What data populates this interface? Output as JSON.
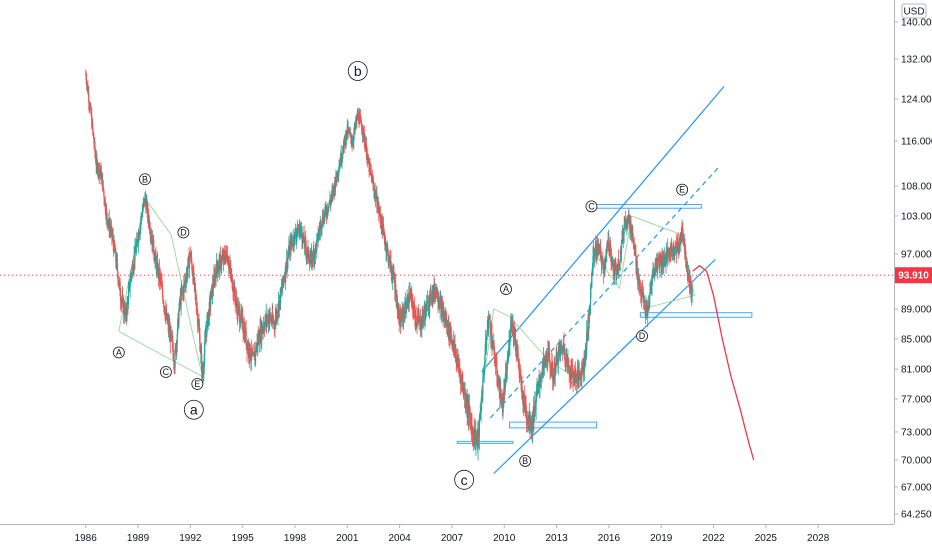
{
  "chart_data": {
    "type": "candlestick",
    "currency": "USD",
    "current_price": "93.910",
    "price_ticks": [
      "140.000",
      "132.000",
      "124.000",
      "116.000",
      "108.000",
      "103.000",
      "97.000",
      "89.000",
      "85.000",
      "81.000",
      "77.000",
      "73.000",
      "70.000",
      "67.000",
      "64.250"
    ],
    "year_ticks": [
      "1986",
      "1989",
      "1992",
      "1995",
      "1998",
      "2001",
      "2004",
      "2007",
      "2010",
      "2013",
      "2016",
      "2019",
      "2022",
      "2025",
      "2028"
    ],
    "wave_labels_small": [
      "A",
      "B",
      "C",
      "D",
      "E",
      "A",
      "B",
      "C",
      "D",
      "E"
    ],
    "wave_labels_large": [
      "a",
      "b",
      "c"
    ],
    "series_path": [
      [
        1986.0,
        129
      ],
      [
        1986.3,
        121
      ],
      [
        1986.6,
        112
      ],
      [
        1986.9,
        110
      ],
      [
        1987.2,
        103
      ],
      [
        1987.5,
        100
      ],
      [
        1987.8,
        95
      ],
      [
        1988.0,
        91
      ],
      [
        1988.3,
        88
      ],
      [
        1988.6,
        94
      ],
      [
        1988.9,
        98
      ],
      [
        1989.2,
        103
      ],
      [
        1989.4,
        106
      ],
      [
        1989.7,
        101
      ],
      [
        1990.0,
        96
      ],
      [
        1990.3,
        93
      ],
      [
        1990.6,
        88
      ],
      [
        1990.9,
        85
      ],
      [
        1991.1,
        82
      ],
      [
        1991.4,
        90
      ],
      [
        1991.7,
        93
      ],
      [
        1992.0,
        97
      ],
      [
        1992.2,
        93
      ],
      [
        1992.5,
        86
      ],
      [
        1992.7,
        80
      ],
      [
        1992.9,
        86
      ],
      [
        1993.2,
        91
      ],
      [
        1993.5,
        95
      ],
      [
        1993.8,
        96
      ],
      [
        1994.1,
        97
      ],
      [
        1994.4,
        93
      ],
      [
        1994.7,
        89
      ],
      [
        1995.0,
        87
      ],
      [
        1995.3,
        84
      ],
      [
        1995.6,
        82
      ],
      [
        1995.9,
        85
      ],
      [
        1996.2,
        87
      ],
      [
        1996.5,
        88
      ],
      [
        1996.8,
        87
      ],
      [
        1997.1,
        90
      ],
      [
        1997.4,
        94
      ],
      [
        1997.7,
        98
      ],
      [
        1998.0,
        100
      ],
      [
        1998.3,
        101
      ],
      [
        1998.6,
        98
      ],
      [
        1998.9,
        96
      ],
      [
        1999.2,
        98
      ],
      [
        1999.5,
        102
      ],
      [
        1999.8,
        104
      ],
      [
        2000.1,
        106
      ],
      [
        2000.4,
        110
      ],
      [
        2000.7,
        114
      ],
      [
        2001.0,
        118
      ],
      [
        2001.3,
        116
      ],
      [
        2001.6,
        121
      ],
      [
        2001.9,
        118
      ],
      [
        2002.2,
        112
      ],
      [
        2002.5,
        108
      ],
      [
        2002.8,
        104
      ],
      [
        2003.1,
        100
      ],
      [
        2003.4,
        96
      ],
      [
        2003.7,
        93
      ],
      [
        2004.0,
        87
      ],
      [
        2004.3,
        89
      ],
      [
        2004.6,
        91
      ],
      [
        2004.9,
        88
      ],
      [
        2005.2,
        87
      ],
      [
        2005.5,
        89
      ],
      [
        2005.8,
        91
      ],
      [
        2006.1,
        92
      ],
      [
        2006.4,
        89
      ],
      [
        2006.7,
        87
      ],
      [
        2007.0,
        85
      ],
      [
        2007.3,
        82
      ],
      [
        2007.6,
        79
      ],
      [
        2007.9,
        76
      ],
      [
        2008.2,
        73
      ],
      [
        2008.5,
        72
      ],
      [
        2008.7,
        77
      ],
      [
        2008.9,
        83
      ],
      [
        2009.1,
        88
      ],
      [
        2009.3,
        85
      ],
      [
        2009.6,
        80
      ],
      [
        2009.9,
        76
      ],
      [
        2010.2,
        82
      ],
      [
        2010.4,
        88
      ],
      [
        2010.7,
        84
      ],
      [
        2011.0,
        78
      ],
      [
        2011.3,
        75
      ],
      [
        2011.6,
        74
      ],
      [
        2011.9,
        78
      ],
      [
        2012.2,
        81
      ],
      [
        2012.5,
        83
      ],
      [
        2012.8,
        80
      ],
      [
        2013.1,
        83
      ],
      [
        2013.4,
        84
      ],
      [
        2013.7,
        81
      ],
      [
        2014.0,
        80
      ],
      [
        2014.3,
        80
      ],
      [
        2014.6,
        82
      ],
      [
        2014.9,
        89
      ],
      [
        2015.1,
        97
      ],
      [
        2015.4,
        98
      ],
      [
        2015.7,
        95
      ],
      [
        2016.0,
        99
      ],
      [
        2016.3,
        94
      ],
      [
        2016.6,
        96
      ],
      [
        2016.9,
        102
      ],
      [
        2017.1,
        103
      ],
      [
        2017.4,
        99
      ],
      [
        2017.7,
        93
      ],
      [
        2018.0,
        90
      ],
      [
        2018.2,
        88
      ],
      [
        2018.5,
        94
      ],
      [
        2018.8,
        96
      ],
      [
        2019.1,
        96
      ],
      [
        2019.4,
        97
      ],
      [
        2019.7,
        98
      ],
      [
        2020.0,
        98
      ],
      [
        2020.2,
        101
      ],
      [
        2020.4,
        97
      ],
      [
        2020.6,
        93
      ],
      [
        2020.8,
        91
      ]
    ],
    "projection_path": [
      [
        2020.8,
        94.5
      ],
      [
        2021.2,
        95.3
      ],
      [
        2021.6,
        94.5
      ],
      [
        2022.0,
        91
      ],
      [
        2022.5,
        85
      ],
      [
        2023.0,
        80
      ],
      [
        2023.5,
        76
      ],
      [
        2024.0,
        72
      ],
      [
        2024.3,
        70
      ]
    ],
    "channel": {
      "lower": [
        [
          2009.4,
          68.5
        ],
        [
          2022.1,
          96.2
        ]
      ],
      "upper": [
        [
          2008.7,
          80.6
        ],
        [
          2022.6,
          126.5
        ]
      ],
      "mid": [
        [
          2009.2,
          74.7
        ],
        [
          2022.4,
          111.7
        ]
      ]
    },
    "rects": [
      {
        "x0": 2010.3,
        "x1": 2015.3,
        "y0": 73.5,
        "y1": 74.2
      },
      {
        "x0": 2017.8,
        "x1": 2024.2,
        "y0": 87.9,
        "y1": 88.5
      },
      {
        "x0": 2015.0,
        "x1": 2021.3,
        "y0": 104.3,
        "y1": 104.9
      },
      {
        "x0": 2007.3,
        "x1": 2010.5,
        "y0": 71.8,
        "y1": 72.0
      }
    ],
    "colors": {
      "bull": "#26a69a",
      "bear": "#ef5350",
      "channel": "#2196f3",
      "projection": "#f23645",
      "price_line": "#f23645",
      "triangle": "#9bd59b",
      "label_bg": "#f23645"
    }
  }
}
